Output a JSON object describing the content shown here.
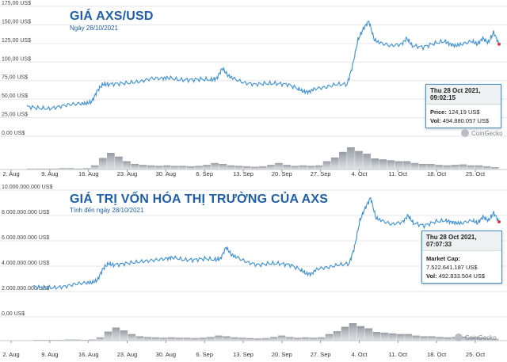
{
  "charts": [
    {
      "title": "GIÁ AXS/USD",
      "subtitle": "Ngày 28/10/2021",
      "tooltip": {
        "time": "Thu 28 Oct 2021, 09:02:15",
        "line1_label": "Price:",
        "line1_value": "124,19 US$",
        "line2_label": "Vol:",
        "line2_value": "494.880.057 US$"
      },
      "brand": "CoinGecko"
    },
    {
      "title": "GIÁ TRỊ VỐN HÓA THỊ TRƯỜNG CỦA AXS",
      "subtitle": "Tính đến ngày 28/10/2021",
      "tooltip": {
        "time": "Thu 28 Oct 2021, 07:07:33",
        "line1_label": "Market Cap:",
        "line1_value": "7.522.641.187 US$",
        "line2_label": "Vol:",
        "line2_value": "492.833.504 US$"
      },
      "brand": "CoinGecko"
    }
  ],
  "chart_data": [
    {
      "type": "line",
      "title": "GIÁ AXS/USD",
      "series": [
        {
          "name": "Price",
          "values": [
            [
              0,
              40
            ],
            [
              2,
              38
            ],
            [
              4,
              37
            ],
            [
              6,
              40
            ],
            [
              8,
              43
            ],
            [
              10,
              44
            ],
            [
              11,
              44
            ],
            [
              12,
              47
            ],
            [
              13,
              62
            ],
            [
              14,
              70
            ],
            [
              15,
              70
            ],
            [
              17,
              71
            ],
            [
              19,
              72
            ],
            [
              21,
              74
            ],
            [
              23,
              78
            ],
            [
              25,
              78
            ],
            [
              26,
              79
            ],
            [
              28,
              76
            ],
            [
              30,
              76
            ],
            [
              32,
              77
            ],
            [
              34,
              76
            ],
            [
              35,
              78
            ],
            [
              36,
              92
            ],
            [
              37,
              82
            ],
            [
              38,
              78
            ],
            [
              40,
              72
            ],
            [
              42,
              70
            ],
            [
              44,
              71
            ],
            [
              46,
              71
            ],
            [
              48,
              70
            ],
            [
              50,
              64
            ],
            [
              51,
              60
            ],
            [
              52,
              60
            ],
            [
              53,
              64
            ],
            [
              55,
              66
            ],
            [
              57,
              70
            ],
            [
              59,
              70
            ],
            [
              60,
              95
            ],
            [
              61,
              130
            ],
            [
              62,
              145
            ],
            [
              63,
              155
            ],
            [
              64,
              130
            ],
            [
              65,
              126
            ],
            [
              67,
              122
            ],
            [
              69,
              124
            ],
            [
              70,
              132
            ],
            [
              71,
              122
            ],
            [
              73,
              120
            ],
            [
              75,
              125
            ],
            [
              77,
              128
            ],
            [
              78,
              124
            ],
            [
              79,
              122
            ],
            [
              80,
              124
            ],
            [
              82,
              128
            ],
            [
              83,
              124
            ],
            [
              84,
              132
            ],
            [
              85,
              126
            ],
            [
              86,
              140
            ],
            [
              87,
              124
            ]
          ]
        }
      ],
      "volume": [
        2,
        2,
        2,
        2,
        3,
        3,
        2,
        3,
        9,
        25,
        36,
        28,
        18,
        12,
        10,
        9,
        8,
        9,
        8,
        8,
        7,
        8,
        10,
        14,
        12,
        9,
        8,
        7,
        6,
        7,
        10,
        14,
        10,
        8,
        9,
        8,
        9,
        18,
        26,
        38,
        48,
        40,
        34,
        24,
        22,
        20,
        18,
        18,
        14,
        12,
        12,
        10,
        9,
        10,
        11,
        9,
        9,
        7,
        5
      ],
      "x_ticks": [
        "2. Aug",
        "9. Aug",
        "16. Aug",
        "23. Aug",
        "30. Aug",
        "6. Sep",
        "13. Sep",
        "20. Sep",
        "27. Sep",
        "4. Oct",
        "11. Oct",
        "18. Oct",
        "25. Oct"
      ],
      "y_ticks": [
        "0,00 US$",
        "25,00 US$",
        "50,00 US$",
        "75,00 US$",
        "100,00 US$",
        "125,00 US$",
        "150,00 US$",
        "175,00 US$"
      ],
      "ylim": [
        0,
        175
      ],
      "xlim": [
        0,
        87
      ]
    },
    {
      "type": "line",
      "title": "GIÁ TRỊ VỐN HÓA THỊ TRƯỜNG CỦA AXS",
      "series": [
        {
          "name": "Market Cap",
          "values": [
            [
              0,
              2.4
            ],
            [
              2,
              2.3
            ],
            [
              4,
              2.3
            ],
            [
              6,
              2.4
            ],
            [
              8,
              2.6
            ],
            [
              10,
              2.7
            ],
            [
              11,
              2.7
            ],
            [
              12,
              2.9
            ],
            [
              13,
              3.8
            ],
            [
              14,
              4.2
            ],
            [
              15,
              4.1
            ],
            [
              17,
              4.2
            ],
            [
              19,
              4.3
            ],
            [
              21,
              4.4
            ],
            [
              23,
              4.5
            ],
            [
              25,
              4.6
            ],
            [
              26,
              4.7
            ],
            [
              28,
              4.5
            ],
            [
              30,
              4.5
            ],
            [
              32,
              4.6
            ],
            [
              34,
              4.5
            ],
            [
              35,
              4.6
            ],
            [
              36,
              5.5
            ],
            [
              37,
              4.9
            ],
            [
              38,
              4.7
            ],
            [
              40,
              4.3
            ],
            [
              42,
              4.1
            ],
            [
              44,
              4.2
            ],
            [
              46,
              4.2
            ],
            [
              48,
              4.1
            ],
            [
              50,
              3.7
            ],
            [
              51,
              3.4
            ],
            [
              52,
              3.4
            ],
            [
              53,
              3.8
            ],
            [
              55,
              3.9
            ],
            [
              57,
              4.1
            ],
            [
              59,
              4.2
            ],
            [
              60,
              5.5
            ],
            [
              61,
              7.6
            ],
            [
              62,
              8.6
            ],
            [
              63,
              9.4
            ],
            [
              64,
              7.8
            ],
            [
              65,
              7.6
            ],
            [
              67,
              7.3
            ],
            [
              69,
              7.5
            ],
            [
              70,
              8.0
            ],
            [
              71,
              7.4
            ],
            [
              73,
              7.2
            ],
            [
              75,
              7.5
            ],
            [
              77,
              7.6
            ],
            [
              78,
              7.5
            ],
            [
              79,
              7.4
            ],
            [
              80,
              7.4
            ],
            [
              82,
              7.6
            ],
            [
              83,
              7.4
            ],
            [
              84,
              7.9
            ],
            [
              85,
              7.6
            ],
            [
              86,
              8.2
            ],
            [
              87,
              7.5
            ]
          ]
        }
      ],
      "volume": [
        2,
        2,
        2,
        2,
        3,
        3,
        2,
        3,
        9,
        25,
        36,
        28,
        18,
        12,
        10,
        9,
        8,
        9,
        8,
        8,
        7,
        8,
        10,
        14,
        12,
        9,
        8,
        7,
        6,
        7,
        10,
        14,
        10,
        8,
        9,
        8,
        9,
        18,
        26,
        38,
        48,
        40,
        34,
        24,
        22,
        20,
        18,
        18,
        14,
        12,
        12,
        10,
        9,
        10,
        11,
        9,
        9,
        7,
        5
      ],
      "x_ticks": [
        "2. Aug",
        "9. Aug",
        "16. Aug",
        "23. Aug",
        "30. Aug",
        "6. Sep",
        "13. Sep",
        "20. Sep",
        "27. Sep",
        "4. Oct",
        "11. Oct",
        "18. Oct",
        "25. Oct"
      ],
      "y_ticks": [
        "0,00 US$",
        "2.000.000.000 US$",
        "4.000.000.000 US$",
        "6.000.000.000 US$",
        "8.000.000.000 US$",
        "10.000.000.000 US$"
      ],
      "ylim": [
        0,
        10
      ],
      "y_unit": "billion US$",
      "xlim": [
        0,
        87
      ]
    }
  ]
}
